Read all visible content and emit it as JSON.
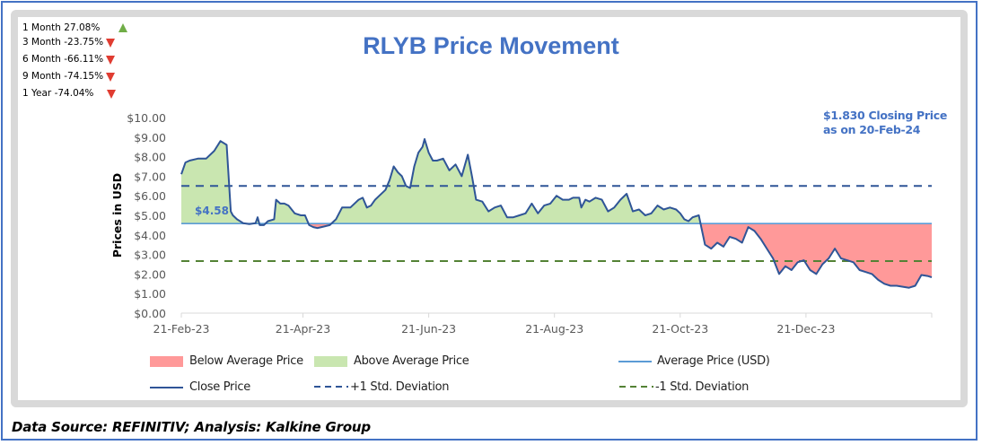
{
  "performance": [
    {
      "label": "1 Month 27.08%",
      "direction": "up"
    },
    {
      "label": "3 Month -23.75%",
      "direction": "down"
    },
    {
      "label": "6 Month -66.11%",
      "direction": "down"
    },
    {
      "label": "9 Month -74.15%",
      "direction": "down"
    },
    {
      "label": "1 Year -74.04%",
      "direction": "down"
    }
  ],
  "closing_note": {
    "line1": "$1.830 Closing Price",
    "line2": "as on 20-Feb-24"
  },
  "footer": "Data Source: REFINITIV; Analysis: Kalkine Group",
  "colors": {
    "title": "#4472c4",
    "close_line": "#2f5597",
    "average_line": "#5b9bd5",
    "above_fill": "#c9e6b0",
    "below_fill": "#ff9999",
    "plus_sd": "#2f5597",
    "minus_sd": "#548235",
    "up": "#70ad47",
    "down": "#e03c31"
  },
  "chart_data": {
    "type": "line",
    "title": "RLYB Price Movement",
    "xlabel": "",
    "ylabel": "Prices in USD",
    "ylim": [
      0,
      10
    ],
    "yticks": [
      "$0.00",
      "$1.00",
      "$2.00",
      "$3.00",
      "$4.00",
      "$5.00",
      "$6.00",
      "$7.00",
      "$8.00",
      "$9.00",
      "$10.00"
    ],
    "xticks": [
      "21-Feb-23",
      "21-Apr-23",
      "21-Jun-23",
      "21-Aug-23",
      "21-Oct-23",
      "21-Dec-23"
    ],
    "x_range_days": [
      0,
      364
    ],
    "xtick_days": [
      0,
      59,
      120,
      181,
      242,
      303
    ],
    "average": 4.58,
    "average_label": "$4.58",
    "plus_1_sd": 6.5,
    "minus_1_sd": 2.66,
    "legend_position": "bottom",
    "legend": [
      {
        "key": "below",
        "label": "Below Average Price"
      },
      {
        "key": "above",
        "label": "Above Average Price"
      },
      {
        "key": "avg",
        "label": "Average Price (USD)"
      },
      {
        "key": "close",
        "label": "Close Price"
      },
      {
        "key": "plus",
        "label": "+1 Std. Deviation"
      },
      {
        "key": "minus",
        "label": "-1 Std. Deviation"
      }
    ],
    "series": [
      {
        "name": "Close Price",
        "days": [
          0,
          2,
          4,
          8,
          12,
          16,
          19,
          22,
          24,
          25,
          27,
          30,
          33,
          36,
          37,
          38,
          40,
          42,
          45,
          46,
          48,
          50,
          52,
          55,
          58,
          60,
          62,
          64,
          66,
          68,
          72,
          75,
          78,
          82,
          86,
          88,
          90,
          92,
          94,
          96,
          99,
          101,
          103,
          105,
          107,
          109,
          111,
          113,
          115,
          117,
          118,
          120,
          122,
          124,
          127,
          130,
          133,
          136,
          139,
          141,
          143,
          146,
          149,
          152,
          155,
          158,
          161,
          164,
          167,
          170,
          173,
          176,
          179,
          182,
          185,
          188,
          190,
          193,
          194,
          196,
          198,
          201,
          204,
          207,
          210,
          213,
          216,
          219,
          222,
          225,
          228,
          231,
          234,
          237,
          240,
          242,
          244,
          246,
          248,
          251,
          254,
          257,
          260,
          263,
          266,
          269,
          272,
          275,
          278,
          281,
          284,
          287,
          290,
          293,
          296,
          299,
          302,
          305,
          308,
          311,
          314,
          317,
          320,
          323,
          326,
          329,
          332,
          335,
          338,
          341,
          344,
          347,
          350,
          353,
          356,
          359,
          362,
          364
        ],
        "values": [
          7.1,
          7.7,
          7.8,
          7.9,
          7.9,
          8.3,
          8.8,
          8.6,
          5.2,
          5.0,
          4.8,
          4.6,
          4.55,
          4.6,
          4.9,
          4.5,
          4.5,
          4.7,
          4.8,
          5.8,
          5.6,
          5.6,
          5.5,
          5.1,
          5.0,
          5.0,
          4.5,
          4.4,
          4.35,
          4.4,
          4.5,
          4.8,
          5.4,
          5.4,
          5.8,
          5.9,
          5.4,
          5.5,
          5.8,
          6.0,
          6.3,
          6.8,
          7.5,
          7.2,
          7.0,
          6.5,
          6.4,
          7.5,
          8.2,
          8.5,
          8.9,
          8.2,
          7.8,
          7.8,
          7.9,
          7.3,
          7.6,
          7.0,
          8.1,
          7.0,
          5.8,
          5.7,
          5.2,
          5.4,
          5.5,
          4.9,
          4.9,
          5.0,
          5.1,
          5.6,
          5.1,
          5.5,
          5.6,
          6.0,
          5.8,
          5.8,
          5.9,
          5.9,
          5.4,
          5.8,
          5.7,
          5.9,
          5.8,
          5.2,
          5.4,
          5.8,
          6.1,
          5.2,
          5.3,
          5.0,
          5.1,
          5.5,
          5.3,
          5.4,
          5.3,
          5.1,
          4.8,
          4.7,
          4.9,
          5.0,
          3.5,
          3.3,
          3.6,
          3.4,
          3.9,
          3.8,
          3.6,
          4.4,
          4.2,
          3.8,
          3.3,
          2.8,
          2.0,
          2.4,
          2.2,
          2.6,
          2.7,
          2.2,
          2.0,
          2.5,
          2.8,
          3.3,
          2.8,
          2.7,
          2.6,
          2.2,
          2.1,
          2.0,
          1.7,
          1.5,
          1.4,
          1.4,
          1.35,
          1.3,
          1.4,
          1.95,
          1.9,
          1.83
        ]
      }
    ]
  }
}
